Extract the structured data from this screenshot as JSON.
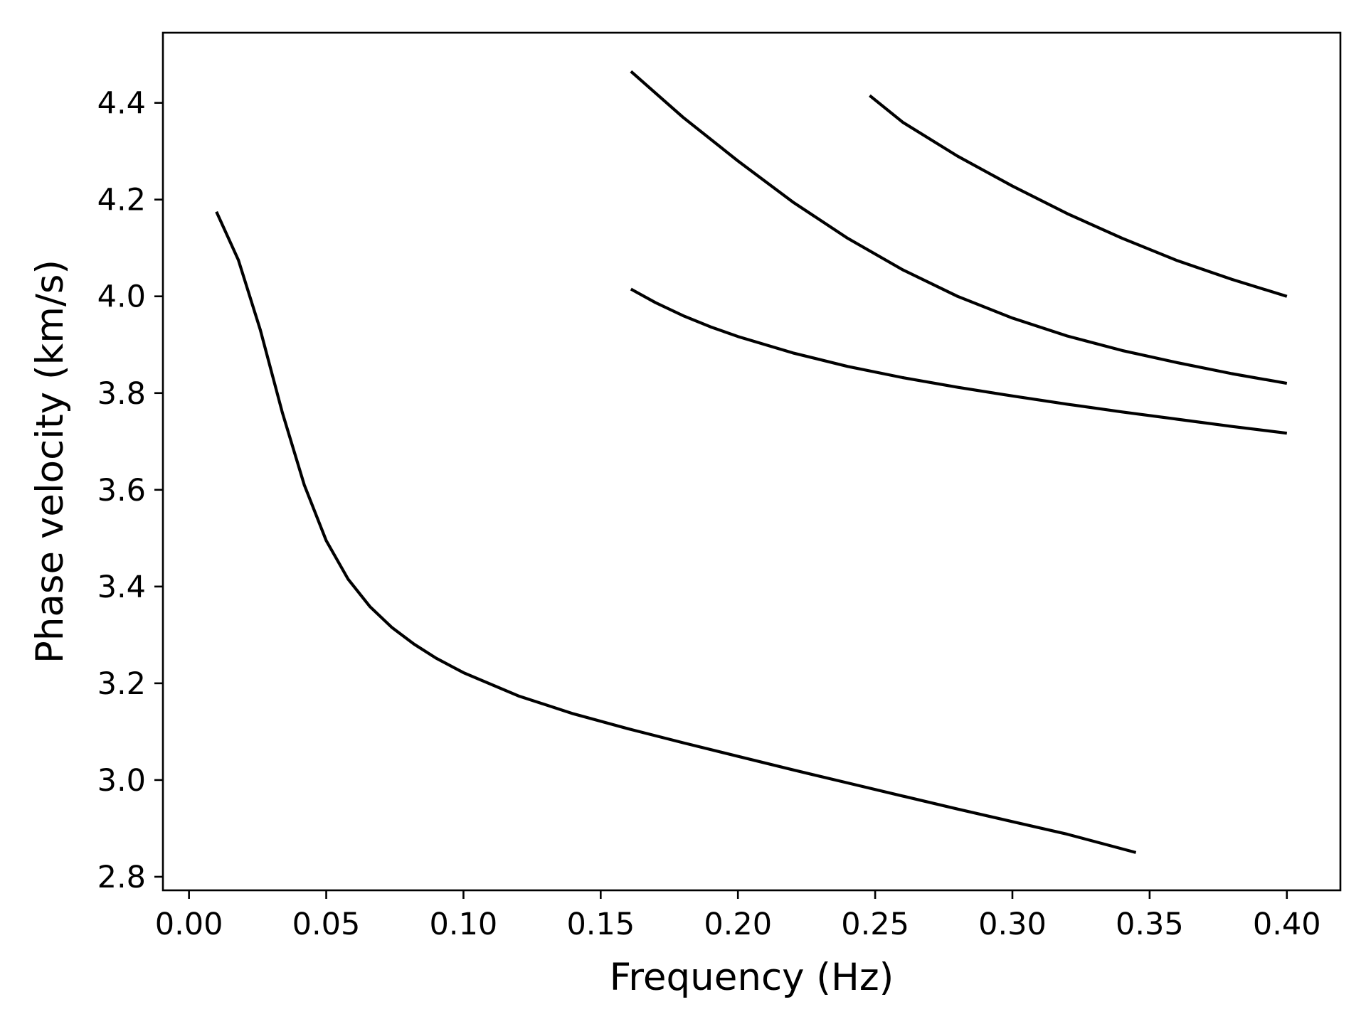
{
  "chart_data": {
    "type": "line",
    "title": "",
    "xlabel": "Frequency (Hz)",
    "ylabel": "Phase velocity (km/s)",
    "xlim": [
      -0.0095,
      0.4195
    ],
    "ylim": [
      2.772,
      4.545
    ],
    "xticks": [
      0.0,
      0.05,
      0.1,
      0.15,
      0.2,
      0.25,
      0.3,
      0.35,
      0.4
    ],
    "xtick_labels": [
      "0.00",
      "0.05",
      "0.10",
      "0.15",
      "0.20",
      "0.25",
      "0.30",
      "0.35",
      "0.40"
    ],
    "yticks": [
      2.8,
      3.0,
      3.2,
      3.4,
      3.6,
      3.8,
      4.0,
      4.2,
      4.4
    ],
    "ytick_labels": [
      "2.8",
      "3.0",
      "3.2",
      "3.4",
      "3.6",
      "3.8",
      "4.0",
      "4.2",
      "4.4"
    ],
    "grid": false,
    "legend": false,
    "line_color": "#000000",
    "series": [
      {
        "x": [
          0.01,
          0.018,
          0.026,
          0.034,
          0.042,
          0.05,
          0.058,
          0.066,
          0.074,
          0.082,
          0.09,
          0.1,
          0.12,
          0.14,
          0.16,
          0.18,
          0.2,
          0.22,
          0.24,
          0.26,
          0.28,
          0.3,
          0.32,
          0.345
        ],
        "y": [
          4.175,
          4.075,
          3.93,
          3.76,
          3.61,
          3.495,
          3.415,
          3.358,
          3.315,
          3.281,
          3.252,
          3.222,
          3.174,
          3.137,
          3.106,
          3.077,
          3.049,
          3.021,
          2.994,
          2.967,
          2.94,
          2.914,
          2.888,
          2.85
        ]
      },
      {
        "x": [
          0.161,
          0.17,
          0.18,
          0.19,
          0.2,
          0.22,
          0.24,
          0.26,
          0.28,
          0.3,
          0.32,
          0.34,
          0.36,
          0.38,
          0.4
        ],
        "y": [
          4.015,
          3.987,
          3.96,
          3.937,
          3.917,
          3.883,
          3.855,
          3.832,
          3.812,
          3.794,
          3.777,
          3.761,
          3.746,
          3.731,
          3.717
        ]
      },
      {
        "x": [
          0.161,
          0.18,
          0.2,
          0.22,
          0.24,
          0.26,
          0.28,
          0.3,
          0.32,
          0.34,
          0.36,
          0.38,
          0.4
        ],
        "y": [
          4.465,
          4.37,
          4.28,
          4.195,
          4.12,
          4.055,
          4.0,
          3.955,
          3.918,
          3.888,
          3.863,
          3.84,
          3.82
        ]
      },
      {
        "x": [
          0.248,
          0.26,
          0.28,
          0.3,
          0.32,
          0.34,
          0.36,
          0.38,
          0.4
        ],
        "y": [
          4.415,
          4.36,
          4.29,
          4.228,
          4.171,
          4.12,
          4.074,
          4.035,
          4.0
        ]
      }
    ]
  }
}
